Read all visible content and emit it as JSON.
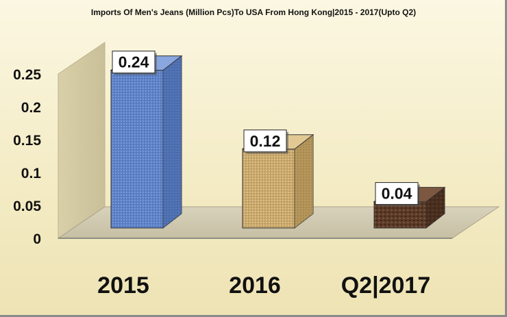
{
  "chart_data": {
    "type": "bar",
    "title": "Imports Of Men's Jeans (Million Pcs)To USA From Hong Kong|2015 - 2017(Upto Q2)",
    "xlabel": "",
    "ylabel": "",
    "categories": [
      "2015",
      "2016",
      "Q2|2017"
    ],
    "values": [
      0.24,
      0.12,
      0.04
    ],
    "data_labels": [
      "0.24",
      "0.12",
      "0.04"
    ],
    "ylim": [
      0,
      0.25
    ],
    "yticks": [
      "0",
      "0.05",
      "0.1",
      "0.15",
      "0.2",
      "0.25"
    ],
    "grid": false,
    "legend": "none",
    "style": "3d-column",
    "colors": [
      "#5b7fc4",
      "#c9a76a",
      "#5a3a2a"
    ]
  }
}
